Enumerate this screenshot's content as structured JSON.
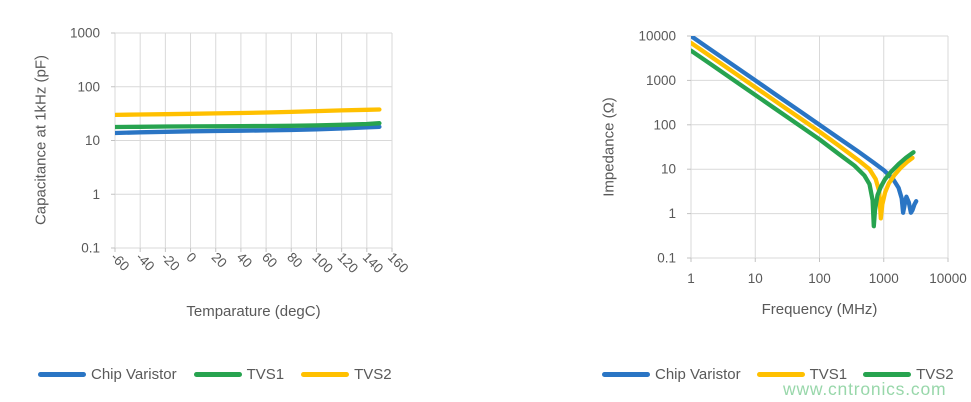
{
  "watermark": {
    "text": "www.cntronics.com",
    "color": "#86d09b"
  },
  "colors": {
    "text": "#595959",
    "grid": "#d9d9d9",
    "axis": "#c2c2c2",
    "background": "#ffffff",
    "series_blue": "#2a75c4",
    "series_green": "#27a34f",
    "series_yellow": "#ffc000"
  },
  "chart_data": [
    {
      "type": "line",
      "title": "",
      "xlabel": "Temparature (degC)",
      "ylabel": "Capacitance at 1kHz (pF)",
      "x_scale": "linear",
      "y_scale": "log",
      "xlim": [
        -60,
        160
      ],
      "ylim": [
        0.1,
        1000
      ],
      "x_ticks": [
        -60,
        -40,
        -20,
        0,
        20,
        40,
        60,
        80,
        100,
        120,
        140,
        160
      ],
      "y_ticks": [
        0.1,
        1,
        10,
        100,
        1000
      ],
      "grid": true,
      "legend_position": "bottom",
      "series": [
        {
          "name": "Chip Varistor",
          "color": "#2a75c4",
          "x": [
            -60,
            -40,
            -20,
            0,
            20,
            40,
            60,
            80,
            100,
            120,
            140,
            150
          ],
          "y": [
            13.8,
            14.2,
            14.5,
            14.8,
            15.0,
            15.2,
            15.4,
            15.7,
            16.1,
            16.7,
            17.5,
            18.0
          ]
        },
        {
          "name": "TVS1",
          "color": "#27a34f",
          "x": [
            -60,
            -40,
            -20,
            0,
            20,
            40,
            60,
            80,
            100,
            120,
            140,
            150
          ],
          "y": [
            17.8,
            18.0,
            18.2,
            18.3,
            18.4,
            18.5,
            18.6,
            18.8,
            19.1,
            19.6,
            20.3,
            21.0
          ]
        },
        {
          "name": "TVS2",
          "color": "#ffc000",
          "x": [
            -60,
            -40,
            -20,
            0,
            20,
            40,
            60,
            80,
            100,
            120,
            140,
            150
          ],
          "y": [
            30.0,
            30.4,
            30.9,
            31.4,
            31.9,
            32.5,
            33.2,
            34.1,
            35.2,
            36.3,
            37.3,
            37.8
          ]
        }
      ]
    },
    {
      "type": "line",
      "title": "",
      "xlabel": "Frequency (MHz)",
      "ylabel": "Impedance (Ω)",
      "x_scale": "log",
      "y_scale": "log",
      "xlim": [
        1,
        10000
      ],
      "ylim": [
        0.1,
        10000
      ],
      "x_ticks": [
        1,
        10,
        100,
        1000,
        10000
      ],
      "y_ticks": [
        0.1,
        1,
        10,
        100,
        1000,
        10000
      ],
      "grid": true,
      "legend_position": "bottom",
      "series": [
        {
          "name": "Chip Varistor",
          "color": "#2a75c4",
          "x": [
            1,
            2,
            5,
            10,
            20,
            50,
            100,
            200,
            400,
            700,
            1000,
            1400,
            1700,
            1900,
            2000,
            2150,
            2250,
            2450,
            2650,
            2800,
            3000,
            3200
          ],
          "y": [
            10000,
            5000,
            2000,
            1000,
            500,
            200,
            100,
            50,
            25,
            14,
            9.5,
            6.0,
            3.8,
            2.2,
            1.05,
            1.8,
            2.4,
            1.8,
            1.05,
            1.2,
            1.6,
            1.9
          ]
        },
        {
          "name": "TVS1",
          "color": "#ffc000",
          "x": [
            1,
            2,
            5,
            10,
            20,
            50,
            100,
            200,
            400,
            600,
            750,
            850,
            900,
            950,
            1050,
            1200,
            1450,
            1800,
            2300,
            2800
          ],
          "y": [
            7000,
            3500,
            1400,
            700,
            350,
            140,
            70,
            34,
            16,
            10,
            6.0,
            3.2,
            0.78,
            1.6,
            3.0,
            4.8,
            7.2,
            10.5,
            14.5,
            18
          ]
        },
        {
          "name": "TVS2",
          "color": "#27a34f",
          "x": [
            1,
            2,
            5,
            10,
            20,
            50,
            100,
            200,
            350,
            500,
            600,
            670,
            700,
            730,
            800,
            900,
            1050,
            1300,
            1700,
            2200,
            2900
          ],
          "y": [
            4700,
            2350,
            940,
            470,
            235,
            94,
            47,
            22,
            12,
            7.2,
            4.6,
            2.0,
            0.52,
            1.2,
            2.6,
            4.0,
            6.0,
            8.8,
            13,
            18,
            24
          ]
        }
      ]
    }
  ]
}
